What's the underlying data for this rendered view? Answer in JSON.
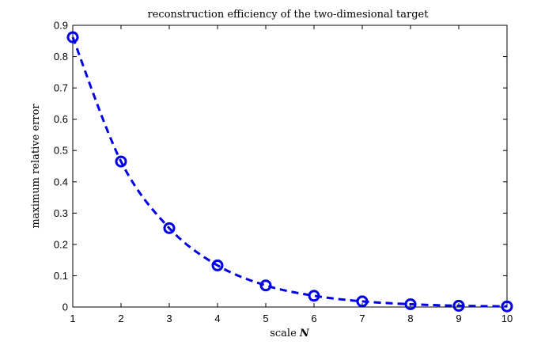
{
  "chart_data": {
    "type": "line",
    "title": "reconstruction efficiency of the two-dimesional target",
    "xlabel_prefix": "scale",
    "xlabel_symbol": "N",
    "ylabel": "maximum relative error",
    "xlim": [
      1,
      10
    ],
    "ylim": [
      0,
      0.9
    ],
    "xticks": [
      "1",
      "2",
      "3",
      "4",
      "5",
      "6",
      "7",
      "8",
      "9",
      "10"
    ],
    "yticks": [
      "0",
      "0.1",
      "0.2",
      "0.3",
      "0.4",
      "0.5",
      "0.6",
      "0.7",
      "0.8",
      "0.9"
    ],
    "grid": false,
    "series": [
      {
        "color": "#0000e6",
        "line_style": "dashed",
        "marker": "circle",
        "x": [
          1,
          2,
          3,
          4,
          5,
          6,
          7,
          8,
          9,
          10
        ],
        "y": [
          0.862,
          0.465,
          0.252,
          0.133,
          0.069,
          0.036,
          0.018,
          0.009,
          0.004,
          0.002
        ]
      }
    ]
  }
}
